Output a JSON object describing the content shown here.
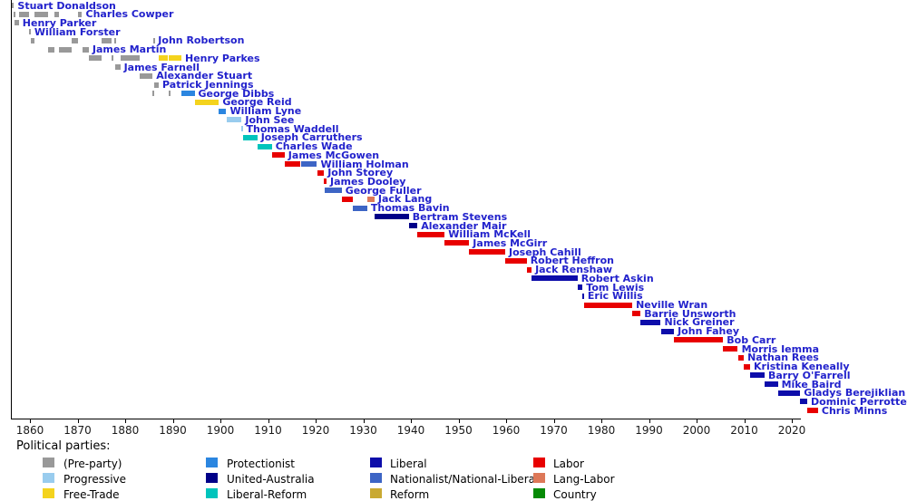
{
  "page": {
    "background": "#ffffff"
  },
  "chart_data": {
    "type": "bar",
    "variant": "gantt-timeline",
    "title": "",
    "xlabel": "",
    "ylabel": "",
    "grid": false,
    "legend_position": "bottom",
    "x_axis": {
      "min": 1856.1,
      "max": 2021.9,
      "ticks": [
        1860,
        1870,
        1880,
        1890,
        1900,
        1910,
        1920,
        1930,
        1940,
        1950,
        1960,
        1970,
        1980,
        1990,
        2000,
        2010,
        2020
      ]
    },
    "label_color": "#2222cc",
    "axis_color": "#000000",
    "parties": {
      "preparty": {
        "label": "(Pre-party)",
        "color": "#999999"
      },
      "progressive": {
        "label": "Progressive",
        "color": "#99ccee"
      },
      "freetrade": {
        "label": "Free-Trade",
        "color": "#f4d31d"
      },
      "protectionist": {
        "label": "Protectionist",
        "color": "#2b86e0"
      },
      "unitedaustralia": {
        "label": "United-Australia",
        "color": "#000088"
      },
      "liberalreform": {
        "label": "Liberal-Reform",
        "color": "#00c4bc"
      },
      "liberal": {
        "label": "Liberal",
        "color": "#0d0daa"
      },
      "nationalist": {
        "label": "Nationalist/National-Liberal",
        "color": "#3d65c5"
      },
      "reform": {
        "label": "Reform",
        "color": "#c9a932"
      },
      "labor": {
        "label": "Labor",
        "color": "#e80000"
      },
      "langlabor": {
        "label": "Lang-Labor",
        "color": "#dd7858"
      },
      "country": {
        "label": "Country",
        "color": "#058a05"
      }
    },
    "legend": {
      "title": "Political parties:",
      "columns": [
        [
          "preparty",
          "progressive",
          "freetrade"
        ],
        [
          "protectionist",
          "unitedaustralia",
          "liberalreform"
        ],
        [
          "liberal",
          "nationalist",
          "reform"
        ],
        [
          "labor",
          "langlabor",
          "country"
        ]
      ]
    },
    "premiers": [
      {
        "name": "Stuart Donaldson",
        "segments": [
          {
            "party": "preparty",
            "start": 1856.25,
            "end": 1856.65
          }
        ]
      },
      {
        "name": "Charles Cowper",
        "segments": [
          {
            "party": "preparty",
            "start": 1856.65,
            "end": 1856.76
          },
          {
            "party": "preparty",
            "start": 1857.68,
            "end": 1859.82
          },
          {
            "party": "preparty",
            "start": 1861.03,
            "end": 1863.79
          },
          {
            "party": "preparty",
            "start": 1865.09,
            "end": 1866.06
          },
          {
            "party": "preparty",
            "start": 1870.04,
            "end": 1870.96
          }
        ]
      },
      {
        "name": "Henry Parker",
        "segments": [
          {
            "party": "preparty",
            "start": 1856.76,
            "end": 1857.68
          }
        ]
      },
      {
        "name": "William Forster",
        "segments": [
          {
            "party": "preparty",
            "start": 1859.82,
            "end": 1860.18
          }
        ]
      },
      {
        "name": "John Robertson",
        "segments": [
          {
            "party": "preparty",
            "start": 1860.19,
            "end": 1861.02
          },
          {
            "party": "preparty",
            "start": 1868.82,
            "end": 1870.03
          },
          {
            "party": "preparty",
            "start": 1875.11,
            "end": 1877.22
          },
          {
            "party": "preparty",
            "start": 1877.63,
            "end": 1877.96
          },
          {
            "party": "preparty",
            "start": 1885.98,
            "end": 1886.15
          }
        ]
      },
      {
        "name": "James Martin",
        "segments": [
          {
            "party": "preparty",
            "start": 1863.79,
            "end": 1865.09
          },
          {
            "party": "preparty",
            "start": 1866.06,
            "end": 1868.82
          },
          {
            "party": "preparty",
            "start": 1870.96,
            "end": 1872.37
          }
        ]
      },
      {
        "name": "Henry Parkes",
        "segments": [
          {
            "party": "preparty",
            "start": 1872.37,
            "end": 1875.11
          },
          {
            "party": "preparty",
            "start": 1877.22,
            "end": 1877.62
          },
          {
            "party": "preparty",
            "start": 1878.97,
            "end": 1883.01
          },
          {
            "party": "freetrade",
            "start": 1887.05,
            "end": 1889.04
          },
          {
            "party": "freetrade",
            "start": 1889.18,
            "end": 1891.81
          }
        ]
      },
      {
        "name": "James Farnell",
        "segments": [
          {
            "party": "preparty",
            "start": 1877.96,
            "end": 1878.97
          }
        ]
      },
      {
        "name": "Alexander Stuart",
        "segments": [
          {
            "party": "preparty",
            "start": 1883.01,
            "end": 1885.77
          }
        ]
      },
      {
        "name": "Patrick Jennings",
        "segments": [
          {
            "party": "preparty",
            "start": 1886.15,
            "end": 1887.05
          }
        ]
      },
      {
        "name": "George Dibbs",
        "segments": [
          {
            "party": "preparty",
            "start": 1885.77,
            "end": 1885.97
          },
          {
            "party": "preparty",
            "start": 1889.04,
            "end": 1889.18
          },
          {
            "party": "protectionist",
            "start": 1891.81,
            "end": 1894.58
          }
        ]
      },
      {
        "name": "George Reid",
        "segments": [
          {
            "party": "freetrade",
            "start": 1894.59,
            "end": 1899.7
          }
        ]
      },
      {
        "name": "William Lyne",
        "segments": [
          {
            "party": "protectionist",
            "start": 1899.7,
            "end": 1901.23
          }
        ]
      },
      {
        "name": "John See",
        "segments": [
          {
            "party": "progressive",
            "start": 1901.24,
            "end": 1904.45
          }
        ]
      },
      {
        "name": "Thomas Waddell",
        "segments": [
          {
            "party": "progressive",
            "start": 1904.45,
            "end": 1904.66
          }
        ]
      },
      {
        "name": "Joseph Carruthers",
        "segments": [
          {
            "party": "liberalreform",
            "start": 1904.66,
            "end": 1907.75
          }
        ]
      },
      {
        "name": "Charles Wade",
        "segments": [
          {
            "party": "liberalreform",
            "start": 1907.75,
            "end": 1910.8
          }
        ]
      },
      {
        "name": "James McGowen",
        "segments": [
          {
            "party": "labor",
            "start": 1910.8,
            "end": 1913.49
          }
        ]
      },
      {
        "name": "William Holman",
        "segments": [
          {
            "party": "labor",
            "start": 1913.49,
            "end": 1916.87
          },
          {
            "party": "nationalist",
            "start": 1916.87,
            "end": 1920.28
          }
        ]
      },
      {
        "name": "John Storey",
        "segments": [
          {
            "party": "labor",
            "start": 1920.28,
            "end": 1921.76
          }
        ]
      },
      {
        "name": "James Dooley",
        "segments": [
          {
            "party": "labor",
            "start": 1921.76,
            "end": 1922.28
          }
        ]
      },
      {
        "name": "George Fuller",
        "segments": [
          {
            "party": "nationalist",
            "start": 1921.96,
            "end": 1921.98
          },
          {
            "party": "nationalist",
            "start": 1922.28,
            "end": 1925.46
          }
        ]
      },
      {
        "name": "Jack Lang",
        "segments": [
          {
            "party": "labor",
            "start": 1925.46,
            "end": 1927.8
          },
          {
            "party": "langlabor",
            "start": 1930.84,
            "end": 1932.37
          }
        ]
      },
      {
        "name": "Thomas Bavin",
        "segments": [
          {
            "party": "nationalist",
            "start": 1927.8,
            "end": 1930.84
          }
        ]
      },
      {
        "name": "Bertram Stevens",
        "segments": [
          {
            "party": "unitedaustralia",
            "start": 1932.37,
            "end": 1939.59
          }
        ]
      },
      {
        "name": "Alexander Mair",
        "segments": [
          {
            "party": "unitedaustralia",
            "start": 1939.59,
            "end": 1941.37
          }
        ]
      },
      {
        "name": "William McKell",
        "segments": [
          {
            "party": "labor",
            "start": 1941.37,
            "end": 1947.1
          }
        ]
      },
      {
        "name": "James McGirr",
        "segments": [
          {
            "party": "labor",
            "start": 1947.1,
            "end": 1952.25
          }
        ]
      },
      {
        "name": "Joseph Cahill",
        "segments": [
          {
            "party": "labor",
            "start": 1952.25,
            "end": 1959.81
          }
        ]
      },
      {
        "name": "Robert Heffron",
        "segments": [
          {
            "party": "labor",
            "start": 1959.81,
            "end": 1964.33
          }
        ]
      },
      {
        "name": "Jack Renshaw",
        "segments": [
          {
            "party": "labor",
            "start": 1964.33,
            "end": 1965.36
          }
        ]
      },
      {
        "name": "Robert Askin",
        "segments": [
          {
            "party": "liberal",
            "start": 1965.36,
            "end": 1975.01
          }
        ]
      },
      {
        "name": "Tom Lewis",
        "segments": [
          {
            "party": "liberal",
            "start": 1975.01,
            "end": 1976.06
          }
        ]
      },
      {
        "name": "Eric Willis",
        "segments": [
          {
            "party": "liberal",
            "start": 1976.06,
            "end": 1976.37
          }
        ]
      },
      {
        "name": "Neville Wran",
        "segments": [
          {
            "party": "labor",
            "start": 1976.37,
            "end": 1986.5
          }
        ]
      },
      {
        "name": "Barrie Unsworth",
        "segments": [
          {
            "party": "labor",
            "start": 1986.5,
            "end": 1988.23
          }
        ]
      },
      {
        "name": "Nick Greiner",
        "segments": [
          {
            "party": "liberal",
            "start": 1988.23,
            "end": 1992.48
          }
        ]
      },
      {
        "name": "John Fahey",
        "segments": [
          {
            "party": "liberal",
            "start": 1992.48,
            "end": 1995.26
          }
        ]
      },
      {
        "name": "Bob Carr",
        "segments": [
          {
            "party": "labor",
            "start": 1995.26,
            "end": 2005.59
          }
        ]
      },
      {
        "name": "Morris Iemma",
        "segments": [
          {
            "party": "labor",
            "start": 2005.59,
            "end": 2008.68
          }
        ]
      },
      {
        "name": "Nathan Rees",
        "segments": [
          {
            "party": "labor",
            "start": 2008.68,
            "end": 2009.92
          }
        ]
      },
      {
        "name": "Kristina Keneally",
        "segments": [
          {
            "party": "labor",
            "start": 2009.92,
            "end": 2011.24
          }
        ]
      },
      {
        "name": "Barry O'Farrell",
        "segments": [
          {
            "party": "liberal",
            "start": 2011.24,
            "end": 2014.29
          }
        ]
      },
      {
        "name": "Mike Baird",
        "segments": [
          {
            "party": "liberal",
            "start": 2014.29,
            "end": 2017.06
          }
        ]
      },
      {
        "name": "Gladys Berejiklian",
        "segments": [
          {
            "party": "liberal",
            "start": 2017.06,
            "end": 2021.76
          }
        ]
      },
      {
        "name": "Dominic Perrottet",
        "segments": [
          {
            "party": "liberal",
            "start": 2021.76,
            "end": 2023.24
          }
        ]
      },
      {
        "name": "Chris Minns",
        "segments": [
          {
            "party": "labor",
            "start": 2023.24,
            "end": 2025.5
          }
        ]
      }
    ]
  }
}
